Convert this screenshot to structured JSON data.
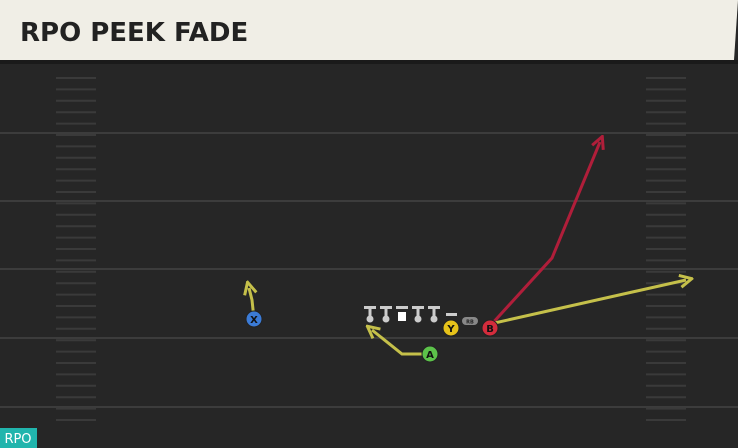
{
  "header": {
    "title": "RPO PEEK FADE"
  },
  "players": [
    {
      "label": "X"
    },
    {
      "label": "Y"
    },
    {
      "label": "A"
    },
    {
      "label": "B"
    },
    {
      "label": "RB"
    }
  ],
  "tag": "RPO"
}
